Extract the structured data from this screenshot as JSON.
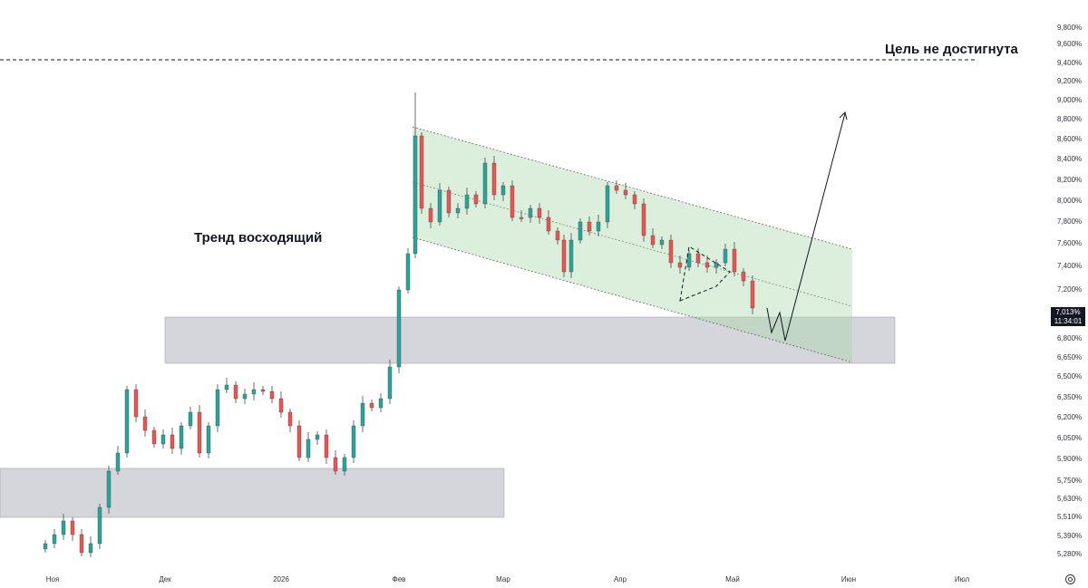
{
  "chart_data": {
    "type": "candlestick",
    "y_axis_ticks": [
      "9,800%",
      "9,600%",
      "9,400%",
      "9,200%",
      "9,000%",
      "8,800%",
      "8,600%",
      "8,400%",
      "8,200%",
      "8,000%",
      "7,800%",
      "7,600%",
      "7,400%",
      "7,200%",
      "6,800%",
      "6,650%",
      "6,500%",
      "6,350%",
      "6,200%",
      "6,050%",
      "5,900%",
      "5,750%",
      "5,630%",
      "5,510%",
      "5,390%",
      "5,280%"
    ],
    "x_axis_ticks": [
      "Ноя",
      "Дек",
      "2026",
      "Фев",
      "Мар",
      "Апр",
      "Май",
      "Июн",
      "Июл"
    ],
    "current_price": {
      "value": "7,013%",
      "time": "11:34:01"
    },
    "annotations": {
      "trend": "Тренд восходящий",
      "target": "Цель не достигнута"
    },
    "colors": {
      "up": "#26a69a",
      "down": "#ef5350",
      "channel": "#c8e6c9",
      "zone": "#b2b5be",
      "text": "#131722"
    }
  }
}
